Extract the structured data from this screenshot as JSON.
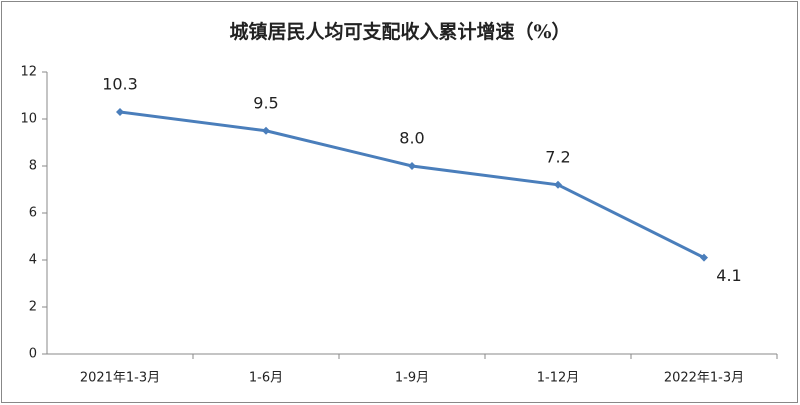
{
  "chart_data": {
    "type": "line",
    "title": "城镇居民人均可支配收入累计增速（%）",
    "categories": [
      "2021年1-3月",
      "1-6月",
      "1-9月",
      "1-12月",
      "2022年1-3月"
    ],
    "series": [
      {
        "name": "城镇居民人均可支配收入累计增速",
        "color": "#4a7ebb",
        "values": [
          10.3,
          9.5,
          8,
          7.2,
          4.1
        ],
        "value_labels": [
          "10.3",
          "9.5",
          "8.0",
          "7.2",
          "4.1"
        ]
      }
    ],
    "ylim": [
      0,
      12
    ],
    "yticks": [
      0,
      2,
      4,
      6,
      8,
      10,
      12
    ],
    "grid": false
  }
}
